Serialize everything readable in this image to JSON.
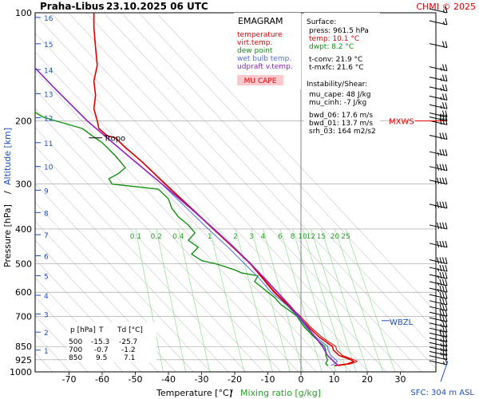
{
  "header": {
    "station": "Praha-Libus",
    "datetime": "23.10.2025 06 UTC",
    "credit": "CHMI © 2025"
  },
  "axes": {
    "ylabel_pressure": "Pressure [hPa]",
    "ylabel_sep": "/",
    "ylabel_altitude": "Altitude [km]",
    "xlabel_temp": "Temperature [°C]",
    "xlabel_sep": "/",
    "xlabel_mix": "Mixing ratio [g/kg]",
    "sfc_label": "SFC: 304 m ASL"
  },
  "legend": {
    "title": "EMAGRAM",
    "items": [
      {
        "label": "temperature",
        "color": "#e00000"
      },
      {
        "label": "virt.temp.",
        "color": "#e00000"
      },
      {
        "label": "dew point",
        "color": "#109010"
      },
      {
        "label": "wet bulb temp.",
        "color": "#4a6ee0"
      },
      {
        "label": "udpraft v.temp.",
        "color": "#9020c0"
      }
    ],
    "cape_button": "MU CAPE"
  },
  "info": {
    "surface_title": "Surface:",
    "surface": [
      {
        "text": "press: 961.5 hPa",
        "color": "#000000"
      },
      {
        "text": "temp: 10.1 °C",
        "color": "#e00000"
      },
      {
        "text": "dwpt: 8.2 °C",
        "color": "#109010"
      }
    ],
    "conv": [
      "t-conv: 21.9 °C",
      "t-mxfc: 21.6 °C"
    ],
    "instab_title": "Instability/Shear:",
    "instab": [
      "mu_cape: 48 J/kg",
      "mu_cinh: -7 J/kg"
    ],
    "shear": [
      "bwd_06: 17.6 m/s",
      "bwd_01: 13.7 m/s",
      "srh_03: 164 m2/s2"
    ]
  },
  "table": {
    "headers": [
      "p [hPa]",
      "T",
      "Td [°C]"
    ],
    "rows": [
      [
        "500",
        "-15.3",
        "-25.7"
      ],
      [
        "700",
        "-0.7",
        "-1.2"
      ],
      [
        "850",
        "9.5",
        "7.1"
      ]
    ]
  },
  "annotations": {
    "tropo": "Tropo",
    "mxws": "MXWS",
    "wbzl": "WBZL"
  },
  "chart_data": {
    "type": "line",
    "y_scale": "log-pressure",
    "ylim": [
      1000,
      100
    ],
    "xlim": [
      -80,
      40
    ],
    "x_ticks": [
      -70,
      -60,
      -50,
      -40,
      -30,
      -20,
      -10,
      0,
      10,
      20,
      30
    ],
    "p_ticks": [
      100,
      200,
      300,
      400,
      500,
      600,
      700,
      850,
      925,
      1000
    ],
    "altitude_ticks_km": [
      1,
      2,
      3,
      4,
      5,
      6,
      7,
      8,
      9,
      10,
      11,
      12,
      13,
      14,
      15,
      16
    ],
    "altitude_tick_pressures": [
      870,
      775,
      690,
      612,
      540,
      475,
      415,
      360,
      312,
      268,
      230,
      196,
      168,
      144,
      122,
      103
    ],
    "mixing_ratio_labels": [
      "0.1",
      "0.2",
      "0.4",
      "1",
      "2",
      "3",
      "4",
      "6",
      "8",
      "10",
      "12",
      "15",
      "20",
      "25"
    ],
    "mixing_ratio_values": [
      0.1,
      0.2,
      0.4,
      1,
      2,
      3,
      4,
      6,
      8,
      10,
      12,
      15,
      20,
      25
    ],
    "skew_deg_per_level": 0,
    "series": [
      {
        "name": "temperature",
        "color": "#e00000",
        "width": 1.6,
        "points": [
          [
            961.5,
            10.1
          ],
          [
            950,
            14
          ],
          [
            935,
            16
          ],
          [
            925,
            15
          ],
          [
            900,
            11.5
          ],
          [
            870,
            9.8
          ],
          [
            850,
            9.5
          ],
          [
            800,
            5.5
          ],
          [
            750,
            2.3
          ],
          [
            700,
            -0.7
          ],
          [
            650,
            -4.2
          ],
          [
            600,
            -8.1
          ],
          [
            550,
            -11.5
          ],
          [
            500,
            -15.3
          ],
          [
            450,
            -20.5
          ],
          [
            400,
            -26.5
          ],
          [
            350,
            -33.2
          ],
          [
            300,
            -41
          ],
          [
            260,
            -48
          ],
          [
            235,
            -53.5
          ],
          [
            223,
            -56
          ],
          [
            220,
            -58.5
          ],
          [
            210,
            -61
          ],
          [
            200,
            -61.5
          ],
          [
            185,
            -62.5
          ],
          [
            170,
            -62
          ],
          [
            155,
            -62.5
          ],
          [
            140,
            -61.5
          ],
          [
            125,
            -62
          ],
          [
            110,
            -62.5
          ],
          [
            100,
            -62.5
          ]
        ]
      },
      {
        "name": "virt.temp.",
        "color": "#e00000",
        "width": 1.0,
        "points": [
          [
            961.5,
            11.3
          ],
          [
            950,
            15
          ],
          [
            935,
            17
          ],
          [
            925,
            16
          ],
          [
            900,
            12.5
          ],
          [
            870,
            10.8
          ],
          [
            850,
            10.5
          ],
          [
            800,
            6.3
          ],
          [
            750,
            2.9
          ],
          [
            700,
            -0.2
          ],
          [
            650,
            -3.8
          ],
          [
            600,
            -7.8
          ],
          [
            550,
            -11.3
          ],
          [
            500,
            -15.1
          ],
          [
            450,
            -20.3
          ],
          [
            400,
            -26.3
          ],
          [
            350,
            -33
          ],
          [
            300,
            -40.8
          ],
          [
            260,
            -47.9
          ],
          [
            235,
            -53.4
          ],
          [
            223,
            -56
          ],
          [
            220,
            -58.5
          ],
          [
            210,
            -61
          ],
          [
            200,
            -61.5
          ],
          [
            185,
            -62.5
          ],
          [
            170,
            -62
          ],
          [
            155,
            -62.5
          ],
          [
            140,
            -61.5
          ],
          [
            125,
            -62
          ],
          [
            110,
            -62.5
          ],
          [
            100,
            -62.5
          ]
        ]
      },
      {
        "name": "dew point",
        "color": "#109010",
        "width": 1.4,
        "points": [
          [
            961.5,
            8.2
          ],
          [
            950,
            7.5
          ],
          [
            935,
            7.8
          ],
          [
            925,
            8
          ],
          [
            900,
            7.5
          ],
          [
            870,
            7.5
          ],
          [
            850,
            7.1
          ],
          [
            800,
            4
          ],
          [
            750,
            1
          ],
          [
            700,
            -1.2
          ],
          [
            680,
            -3
          ],
          [
            650,
            -6
          ],
          [
            620,
            -8
          ],
          [
            600,
            -10
          ],
          [
            580,
            -12
          ],
          [
            560,
            -14
          ],
          [
            540,
            -13
          ],
          [
            530,
            -18
          ],
          [
            520,
            -20
          ],
          [
            500,
            -25.7
          ],
          [
            490,
            -30
          ],
          [
            470,
            -33
          ],
          [
            450,
            -31
          ],
          [
            430,
            -34
          ],
          [
            410,
            -32
          ],
          [
            390,
            -34
          ],
          [
            370,
            -37
          ],
          [
            350,
            -39
          ],
          [
            330,
            -40
          ],
          [
            310,
            -43
          ],
          [
            300,
            -57
          ],
          [
            290,
            -58
          ],
          [
            280,
            -55
          ],
          [
            270,
            -53
          ],
          [
            250,
            -56
          ],
          [
            230,
            -60
          ],
          [
            220,
            -63
          ],
          [
            210,
            -66
          ],
          [
            200,
            -74
          ],
          [
            195,
            -78
          ],
          [
            185,
            -82
          ]
        ]
      },
      {
        "name": "wet bulb temp.",
        "color": "#4a6ee0",
        "width": 1.0,
        "points": [
          [
            961.5,
            9
          ],
          [
            950,
            10
          ],
          [
            935,
            11
          ],
          [
            925,
            10.5
          ],
          [
            900,
            9
          ],
          [
            870,
            8.2
          ],
          [
            850,
            8
          ],
          [
            800,
            4.5
          ],
          [
            750,
            1.5
          ],
          [
            700,
            -1
          ],
          [
            650,
            -4.5
          ],
          [
            600,
            -9
          ],
          [
            550,
            -12.5
          ],
          [
            500,
            -17
          ],
          [
            450,
            -22
          ],
          [
            400,
            -28
          ],
          [
            350,
            -34.5
          ],
          [
            300,
            -42
          ]
        ]
      },
      {
        "name": "udpraft v.temp.",
        "color": "#9020c0",
        "width": 1.6,
        "points": [
          [
            961.5,
            11.3
          ],
          [
            900,
            8
          ],
          [
            850,
            6.5
          ],
          [
            800,
            4.3
          ],
          [
            750,
            1.9
          ],
          [
            700,
            -0.6
          ],
          [
            650,
            -3.6
          ],
          [
            600,
            -7.1
          ],
          [
            550,
            -10.9
          ],
          [
            500,
            -15.2
          ],
          [
            450,
            -20.3
          ],
          [
            400,
            -26.3
          ],
          [
            350,
            -33.4
          ],
          [
            300,
            -41.9
          ],
          [
            250,
            -52.2
          ],
          [
            200,
            -64.5
          ],
          [
            160,
            -75
          ],
          [
            140,
            -81
          ]
        ]
      }
    ],
    "wind_barbs": [
      {
        "p": 955,
        "speed_kt": 15
      },
      {
        "p": 925,
        "speed_kt": 20
      },
      {
        "p": 900,
        "speed_kt": 25
      },
      {
        "p": 875,
        "speed_kt": 25
      },
      {
        "p": 850,
        "speed_kt": 25
      },
      {
        "p": 825,
        "speed_kt": 25
      },
      {
        "p": 800,
        "speed_kt": 30
      },
      {
        "p": 775,
        "speed_kt": 25
      },
      {
        "p": 750,
        "speed_kt": 25
      },
      {
        "p": 725,
        "speed_kt": 30
      },
      {
        "p": 700,
        "speed_kt": 30
      },
      {
        "p": 675,
        "speed_kt": 30
      },
      {
        "p": 650,
        "speed_kt": 30
      },
      {
        "p": 625,
        "speed_kt": 30
      },
      {
        "p": 600,
        "speed_kt": 35
      },
      {
        "p": 575,
        "speed_kt": 35
      },
      {
        "p": 550,
        "speed_kt": 35
      },
      {
        "p": 525,
        "speed_kt": 35
      },
      {
        "p": 500,
        "speed_kt": 40
      },
      {
        "p": 450,
        "speed_kt": 40
      },
      {
        "p": 400,
        "speed_kt": 40
      },
      {
        "p": 350,
        "speed_kt": 45
      },
      {
        "p": 300,
        "speed_kt": 45
      },
      {
        "p": 275,
        "speed_kt": 40
      },
      {
        "p": 250,
        "speed_kt": 35
      },
      {
        "p": 225,
        "speed_kt": 30
      },
      {
        "p": 205,
        "speed_kt": 30
      },
      {
        "p": 200,
        "speed_kt": 30
      },
      {
        "p": 195,
        "speed_kt": 25
      },
      {
        "p": 185,
        "speed_kt": 25
      },
      {
        "p": 175,
        "speed_kt": 25
      },
      {
        "p": 165,
        "speed_kt": 25
      },
      {
        "p": 155,
        "speed_kt": 25
      },
      {
        "p": 145,
        "speed_kt": 25
      },
      {
        "p": 125,
        "speed_kt": 20
      },
      {
        "p": 108,
        "speed_kt": 15
      },
      {
        "p": 100,
        "speed_kt": 15
      }
    ],
    "tropopause_p": 223,
    "mxws_p": 200,
    "wbzl_p": 720
  }
}
